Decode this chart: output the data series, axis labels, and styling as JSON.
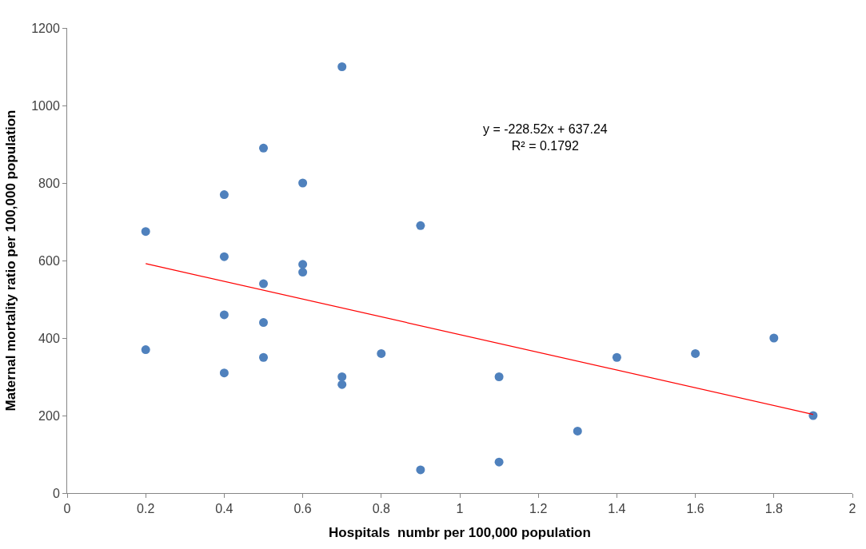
{
  "chart_data": {
    "type": "scatter",
    "xlabel": "Hospitals  numbr per 100,000 population",
    "ylabel": "Maternal mortality ratio per 100,000 population",
    "annotations": [
      "y = -228.52x + 637.24\nR² = 0.1792"
    ],
    "x": [
      0.2,
      0.2,
      0.4,
      0.4,
      0.4,
      0.4,
      0.5,
      0.5,
      0.5,
      0.5,
      0.6,
      0.6,
      0.6,
      0.7,
      0.7,
      0.7,
      0.8,
      0.9,
      0.9,
      1.1,
      1.1,
      1.3,
      1.4,
      1.6,
      1.8,
      1.9
    ],
    "series": [
      {
        "color": "#4f81bd",
        "marker": "circle",
        "values": [
          675,
          370,
          770,
          610,
          460,
          310,
          890,
          540,
          440,
          350,
          800,
          590,
          570,
          1100,
          300,
          280,
          360,
          690,
          60,
          300,
          80,
          160,
          350,
          360,
          400,
          200
        ]
      },
      {
        "type": "line",
        "color": "#ff0000",
        "marker": "none",
        "x": [
          0.2,
          1.9
        ],
        "values": [
          592,
          203
        ]
      }
    ],
    "xlim": [
      0,
      2
    ],
    "xticks": [
      0,
      0.2,
      0.4,
      0.6,
      0.8,
      1,
      1.2,
      1.4,
      1.6,
      1.8,
      2
    ],
    "ylim": [
      0,
      1200
    ],
    "yticks": [
      0,
      200,
      400,
      600,
      800,
      1000,
      1200
    ]
  }
}
